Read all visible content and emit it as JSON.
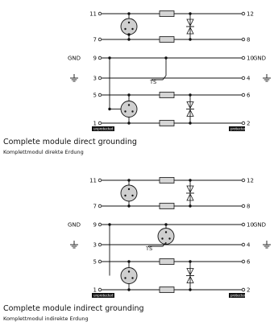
{
  "diagrams": [
    {
      "left_pins": [
        "11",
        "7",
        "9",
        "3",
        "5",
        "1"
      ],
      "right_pins": [
        "12",
        "8",
        "10",
        "4",
        "6",
        "2"
      ],
      "gnd_left": "GND",
      "gnd_right": "GND",
      "ts_label": "TS",
      "unprotected_label": "unprotected",
      "protected_label": "protected",
      "title": "Complete module direct grounding",
      "subtitle": "Komplettmodul direkte Erdung",
      "grounding": "direct"
    },
    {
      "left_pins": [
        "11",
        "7",
        "9",
        "3",
        "5",
        "1"
      ],
      "right_pins": [
        "12",
        "8",
        "10",
        "4",
        "6",
        "2"
      ],
      "gnd_left": "GND",
      "gnd_right": "GND",
      "ts_label": "TS",
      "unprotected_label": "unprotected",
      "protected_label": "protected",
      "title": "Complete module indirect grounding",
      "subtitle": "Komplettmodul indirekte Erdung",
      "grounding": "indirect"
    }
  ],
  "colors": {
    "line": "#111111",
    "resistor_fill": "#d4d4d4",
    "arrester_fill": "#cfcfcf",
    "badge_bg": "#111111",
    "badge_text": "#ffffff"
  }
}
